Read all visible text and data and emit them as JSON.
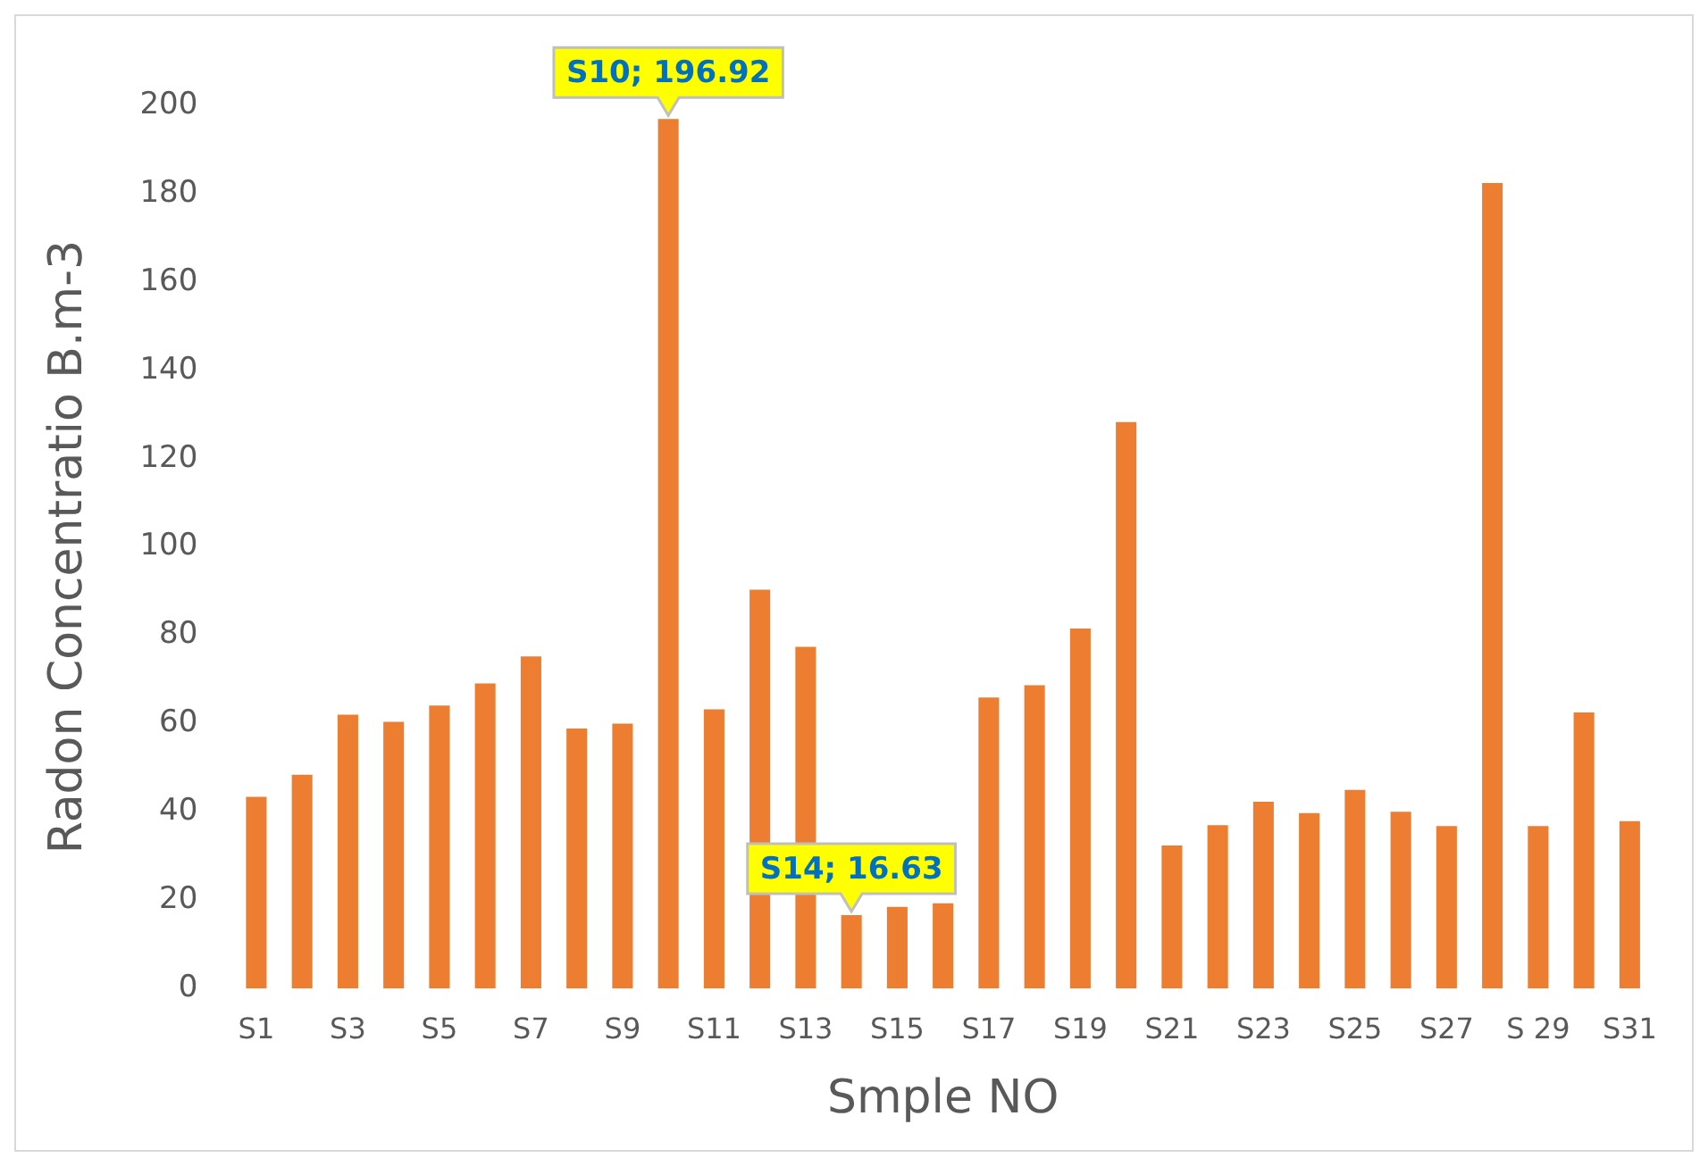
{
  "chart_data": {
    "type": "bar",
    "xlabel": "Smple NO",
    "ylabel": "Radon Concentratio B.m-3",
    "categories": [
      "S1",
      null,
      "S3",
      null,
      "S5",
      null,
      "S7",
      null,
      "S9",
      null,
      "S11",
      null,
      "S13",
      null,
      "S15",
      null,
      "S17",
      null,
      "S19",
      null,
      "S21",
      null,
      "S23",
      null,
      "S25",
      null,
      "S27",
      null,
      "S 29",
      null,
      "S31"
    ],
    "values": [
      43.4,
      48.4,
      62,
      60.4,
      64.1,
      69.1,
      75.2,
      58.9,
      60,
      196.92,
      63.2,
      90.3,
      77.4,
      16.63,
      18.5,
      19.3,
      65.9,
      68.7,
      81.5,
      128.3,
      32.4,
      37,
      42.3,
      39.7,
      45,
      40,
      36.8,
      182.4,
      36.8,
      62.5,
      37.9
    ],
    "value_labels": [
      null,
      null,
      null,
      null,
      null,
      null,
      null,
      null,
      null,
      "S10; 196.92",
      null,
      null,
      null,
      "S14; 16.63",
      null,
      null,
      null,
      null,
      null,
      null,
      null,
      null,
      null,
      null,
      null,
      null,
      null,
      null,
      null,
      null,
      null
    ],
    "color": "#ed7d31",
    "ylim": [
      0,
      200
    ],
    "yticks": [
      0,
      20,
      40,
      60,
      80,
      100,
      120,
      140,
      160,
      180,
      200
    ],
    "grid": false,
    "legend": false
  }
}
